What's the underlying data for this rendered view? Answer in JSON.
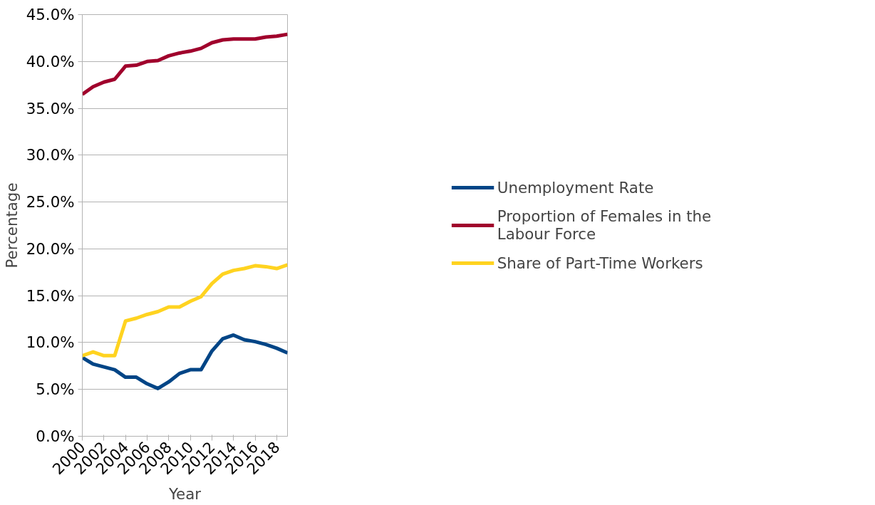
{
  "chart_data": {
    "type": "line",
    "xlabel": "Year",
    "ylabel": "Percentage",
    "x": [
      2000,
      2001,
      2002,
      2003,
      2004,
      2005,
      2006,
      2007,
      2008,
      2009,
      2010,
      2011,
      2012,
      2013,
      2014,
      2015,
      2016,
      2017,
      2018,
      2019
    ],
    "series": [
      {
        "name": "Unemployment Rate",
        "color": "#004586",
        "values": [
          8.4,
          7.7,
          7.4,
          7.1,
          6.3,
          6.3,
          5.6,
          5.1,
          5.8,
          6.7,
          7.1,
          7.1,
          9.1,
          10.4,
          10.8,
          10.3,
          10.1,
          9.8,
          9.4,
          8.9
        ]
      },
      {
        "name": "Proportion of Females in the Labour Force",
        "color": "#a0002c",
        "values": [
          36.5,
          37.3,
          37.8,
          38.1,
          39.5,
          39.6,
          40.0,
          40.1,
          40.6,
          40.9,
          41.1,
          41.4,
          42.0,
          42.3,
          42.4,
          42.4,
          42.4,
          42.6,
          42.7,
          42.9
        ]
      },
      {
        "name": "Share of Part-Time Workers",
        "color": "#ffd320",
        "values": [
          8.6,
          9.0,
          8.6,
          8.6,
          12.3,
          12.6,
          13.0,
          13.3,
          13.8,
          13.8,
          14.4,
          14.9,
          16.3,
          17.3,
          17.7,
          17.9,
          18.2,
          18.1,
          17.9,
          18.3
        ]
      }
    ],
    "xlim": [
      2000,
      2019
    ],
    "xticks": [
      2000,
      2002,
      2004,
      2006,
      2008,
      2010,
      2012,
      2014,
      2016,
      2018
    ],
    "ylim": [
      0,
      45
    ],
    "yticks": [
      {
        "value": 0,
        "label": "0.0%"
      },
      {
        "value": 5,
        "label": "5.0%"
      },
      {
        "value": 10,
        "label": "10.0%"
      },
      {
        "value": 15,
        "label": "15.0%"
      },
      {
        "value": 20,
        "label": "20.0%"
      },
      {
        "value": 25,
        "label": "25.0%"
      },
      {
        "value": 30,
        "label": "30.0%"
      },
      {
        "value": 35,
        "label": "35.0%"
      },
      {
        "value": 40,
        "label": "40.0%"
      },
      {
        "value": 45,
        "label": "45.0%"
      }
    ],
    "grid": "y",
    "legend": "right",
    "marker": "none",
    "line_style": "solid"
  }
}
